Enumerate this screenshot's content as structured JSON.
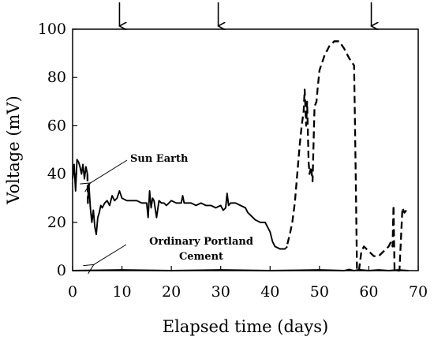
{
  "chart_data": {
    "type": "line",
    "xlabel": "Elapsed time (days)",
    "ylabel": "Voltage (mV)",
    "xlim": [
      0,
      70
    ],
    "ylim": [
      0,
      100
    ],
    "x_ticks": [
      0,
      10,
      20,
      30,
      40,
      50,
      60,
      70
    ],
    "y_ticks": [
      0,
      20,
      40,
      60,
      80,
      100
    ],
    "grid": false,
    "legend": "none",
    "arrow_markers_x": [
      9.5,
      29.5,
      60.5
    ],
    "annotations": [
      {
        "text": "Sun Earth",
        "target": [
          3.3,
          36
        ]
      },
      {
        "text": "Ordinary Portland Cement",
        "lines": [
          "Ordinary Portland",
          "Cement"
        ],
        "target": [
          3.8,
          1.5
        ]
      }
    ],
    "series": [
      {
        "style": "solid",
        "color": "#000000",
        "x": [
          0,
          0.3,
          0.6,
          0.9,
          1.2,
          1.5,
          1.8,
          2.1,
          2.4,
          2.7,
          3.0
        ],
        "y": [
          38,
          44,
          33,
          46,
          45,
          43,
          40,
          44,
          38,
          43,
          40
        ]
      },
      {
        "style": "dashed",
        "color": "#000000",
        "x": [
          3.0,
          3.1,
          3.3
        ],
        "y": [
          40,
          28,
          36
        ]
      },
      {
        "style": "solid",
        "color": "#000000",
        "x": [
          3.3,
          3.6,
          3.9,
          4.2,
          4.5,
          4.8,
          5.1,
          5.4,
          5.7,
          6.0,
          6.5,
          7.0,
          7.5,
          8.0,
          8.5,
          9.0,
          9.5,
          10.0,
          11.0,
          12.0,
          13.0,
          14.0,
          15.0,
          15.3,
          15.6,
          15.9,
          16.2,
          16.5,
          17.0,
          17.5,
          18.0,
          18.5,
          19.0,
          20.0,
          21.0,
          22.0,
          22.3,
          22.6,
          23.0,
          24.0,
          25.0,
          26.0,
          27.0,
          28.0,
          29.0,
          30.0,
          30.5,
          31.0,
          31.3,
          31.6,
          32.0,
          33.0,
          34.0,
          35.0,
          35.5,
          36.0,
          37.0,
          38.0,
          39.0,
          39.5,
          40.0,
          40.5,
          41.0,
          42.0,
          43.0,
          43.5
        ],
        "y": [
          36,
          26,
          20,
          25,
          18,
          15,
          22,
          24,
          27,
          26,
          28,
          29,
          27,
          31,
          29,
          30,
          33,
          30,
          29,
          29,
          29,
          28,
          28,
          22,
          33,
          26,
          30,
          29,
          22,
          29,
          28,
          28,
          27,
          29,
          28,
          28,
          31,
          28,
          28,
          28,
          27,
          28,
          27,
          27,
          26,
          27,
          25,
          26,
          32,
          27,
          28,
          28,
          27,
          26,
          24,
          23,
          21,
          20,
          20,
          18,
          16,
          12,
          10,
          9,
          9,
          10
        ]
      },
      {
        "style": "dashed",
        "color": "#000000",
        "x": [
          43.5,
          44.0,
          44.5,
          45.0,
          45.5,
          46.0,
          46.4,
          46.8,
          47.0,
          47.3,
          47.5,
          47.8,
          48.0,
          48.3,
          48.6,
          49.0,
          49.4,
          49.6,
          50.0,
          51.0,
          52.0,
          53.0,
          54.0,
          55.0,
          56.0,
          57.0,
          57.2,
          57.4,
          57.6,
          58.0,
          58.5,
          59.0,
          60.0,
          61.0,
          62.0,
          63.0,
          64.0,
          64.5,
          64.8,
          65.0,
          65.2,
          65.5,
          65.8,
          66.2,
          66.8,
          67.2,
          67.6
        ],
        "y": [
          11,
          15,
          20,
          28,
          40,
          52,
          60,
          66,
          75,
          60,
          70,
          45,
          40,
          43,
          37,
          68,
          70,
          75,
          83,
          89,
          93,
          95,
          95,
          92,
          88,
          85,
          60,
          30,
          0,
          0,
          8,
          10,
          8,
          6,
          6,
          8,
          10,
          12,
          10,
          27,
          0,
          0,
          0,
          0,
          26,
          24,
          25
        ]
      },
      {
        "style": "solid",
        "color": "#000000",
        "x": [
          0,
          10,
          20,
          30,
          40,
          50,
          55,
          56,
          57,
          58,
          60,
          62,
          64,
          66,
          68
        ],
        "y": [
          0,
          0.3,
          0,
          0.3,
          0,
          0.3,
          0,
          0.5,
          0,
          0.4,
          0,
          0.3,
          0,
          0.3,
          0
        ]
      }
    ]
  }
}
